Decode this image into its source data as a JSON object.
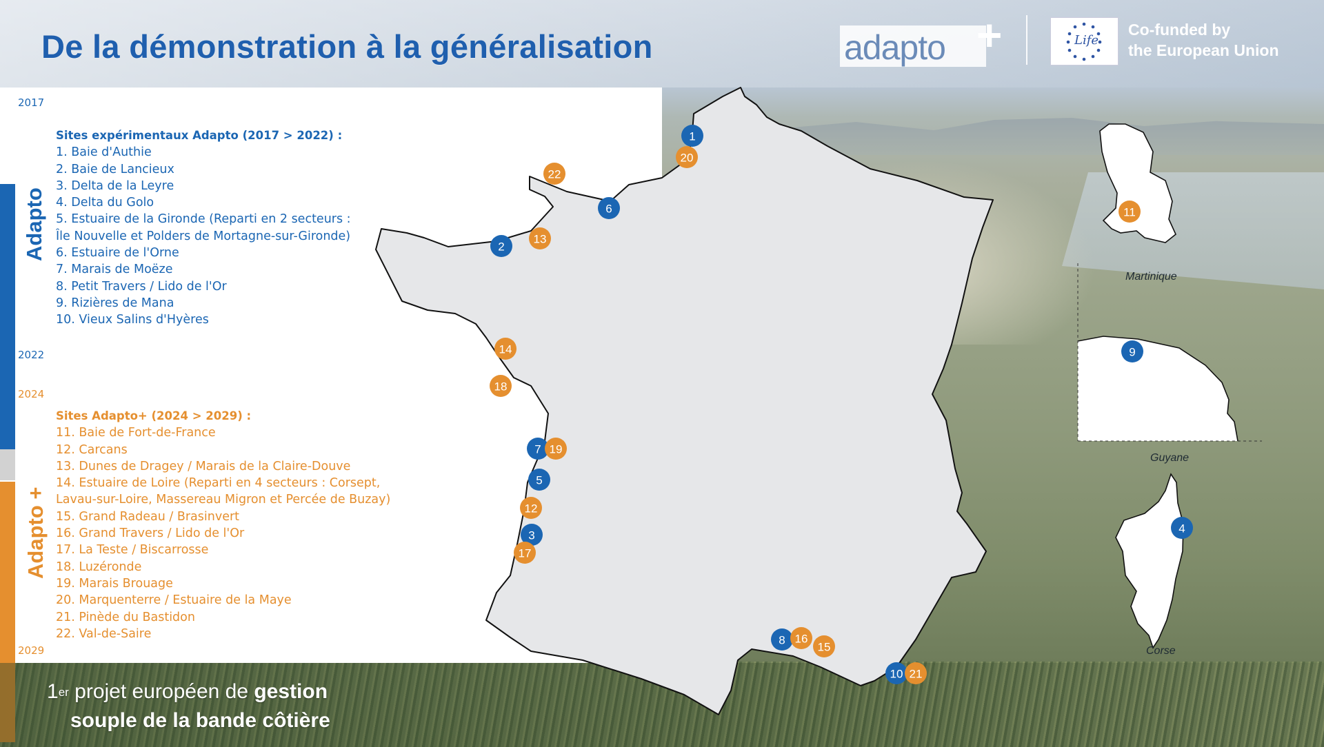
{
  "header": {
    "title": "De la démonstration à la généralisation",
    "logo_word": "adapto",
    "logo_plus": "+",
    "eu_logo_text": "Life",
    "eu_text_line1": "Co-funded by",
    "eu_text_line2": "the European Union"
  },
  "timeline": {
    "adapto_label": "Adapto",
    "adapto_plus_label": "Adapto +",
    "year_2017": "2017",
    "year_2022": "2022",
    "year_2024": "2024",
    "year_2029": "2029"
  },
  "adapto_sites": {
    "heading": "Sites expérimentaux Adapto (2017 > 2022) :",
    "items": [
      "1. Baie d'Authie",
      "2. Baie de Lancieux",
      "3. Delta de la Leyre",
      "4. Delta du Golo",
      "5.  Estuaire de la Gironde (Reparti en 2 secteurs :",
      "Île Nouvelle et Polders de Mortagne-sur-Gironde)",
      "6. Estuaire de l'Orne",
      "7. Marais de Moëze",
      "8. Petit Travers / Lido de l'Or",
      "9. Rizières de Mana",
      "10. Vieux Salins d'Hyères"
    ]
  },
  "adapto_plus_sites": {
    "heading": "Sites Adapto+ (2024 > 2029) :",
    "items": [
      "11. Baie de Fort-de-France",
      "12. Carcans",
      "13. Dunes de Dragey / Marais de la Claire-Douve",
      "14. Estuaire de Loire (Reparti en 4 secteurs : Corsept,",
      "Lavau-sur-Loire, Massereau Migron et Percée de Buzay)",
      "15. Grand Radeau / Brasinvert",
      "16. Grand Travers / Lido de l'Or",
      "17. La Teste / Biscarrosse",
      "18. Luzéronde",
      "19. Marais Brouage",
      "20. Marquenterre / Estuaire de la Maye",
      "21. Pinède du Bastidon",
      "22. Val-de-Saire"
    ]
  },
  "map": {
    "markers": [
      {
        "id": "1",
        "program": "adapto"
      },
      {
        "id": "2",
        "program": "adapto"
      },
      {
        "id": "3",
        "program": "adapto"
      },
      {
        "id": "4",
        "program": "adapto"
      },
      {
        "id": "5",
        "program": "adapto"
      },
      {
        "id": "6",
        "program": "adapto"
      },
      {
        "id": "7",
        "program": "adapto"
      },
      {
        "id": "8",
        "program": "adapto"
      },
      {
        "id": "9",
        "program": "adapto"
      },
      {
        "id": "10",
        "program": "adapto"
      },
      {
        "id": "11",
        "program": "adapto-plus"
      },
      {
        "id": "12",
        "program": "adapto-plus"
      },
      {
        "id": "13",
        "program": "adapto-plus"
      },
      {
        "id": "14",
        "program": "adapto-plus"
      },
      {
        "id": "15",
        "program": "adapto-plus"
      },
      {
        "id": "16",
        "program": "adapto-plus"
      },
      {
        "id": "17",
        "program": "adapto-plus"
      },
      {
        "id": "18",
        "program": "adapto-plus"
      },
      {
        "id": "19",
        "program": "adapto-plus"
      },
      {
        "id": "20",
        "program": "adapto-plus"
      },
      {
        "id": "21",
        "program": "adapto-plus"
      },
      {
        "id": "22",
        "program": "adapto-plus"
      }
    ],
    "insets": {
      "martinique": "Martinique",
      "guyane": "Guyane",
      "corse": "Corse"
    }
  },
  "footer": {
    "line1_pre": "1",
    "line1_sup": "er",
    "line1_mid": " projet européen de ",
    "line1_bold": "gestion",
    "line2_bold": "souple de la bande côtière"
  },
  "colors": {
    "adapto_blue": "#1b66b3",
    "adapto_plus_orange": "#e58f2f",
    "map_fill": "#e6e7e9"
  }
}
